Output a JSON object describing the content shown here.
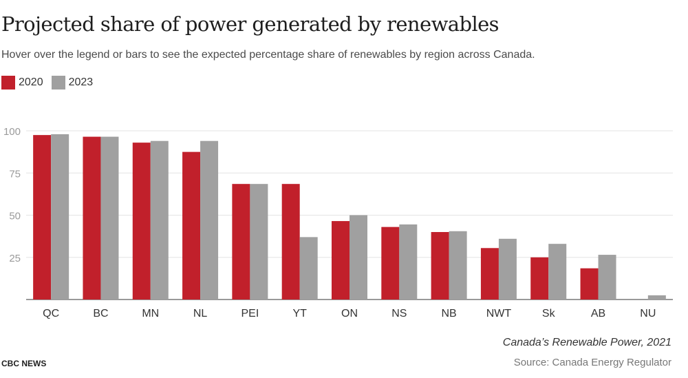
{
  "header": {
    "title": "Projected share of power generated by renewables",
    "subtitle": "Hover over the legend or bars to see the expected percentage share of renewables by region across Canada."
  },
  "legend": [
    {
      "label": "2020",
      "color": "#c1202b"
    },
    {
      "label": "2023",
      "color": "#a0a0a0"
    }
  ],
  "chart_data": {
    "type": "bar",
    "categories": [
      "QC",
      "BC",
      "MN",
      "NL",
      "PEI",
      "YT",
      "ON",
      "NS",
      "NB",
      "NWT",
      "Sk",
      "AB",
      "NU"
    ],
    "series": [
      {
        "name": "2020",
        "color": "#c1202b",
        "values": [
          97.5,
          96.5,
          93,
          87.5,
          68.5,
          68.5,
          46.5,
          43,
          40,
          30.5,
          25,
          18.5,
          0
        ]
      },
      {
        "name": "2023",
        "color": "#a0a0a0",
        "values": [
          98,
          96.5,
          94,
          94,
          68.5,
          37,
          50,
          44.5,
          40.5,
          36,
          33,
          26.5,
          2.5
        ]
      }
    ],
    "ylim": [
      0,
      100
    ],
    "yticks": [
      25,
      50,
      75,
      100
    ],
    "grid": true,
    "legend_position": "top-left",
    "title": "",
    "xlabel": "",
    "ylabel": ""
  },
  "footer": {
    "source_title": "Canada’s Renewable Power, 2021",
    "brand": "CBC NEWS",
    "source_credit": "Source: Canada Energy Regulator"
  }
}
